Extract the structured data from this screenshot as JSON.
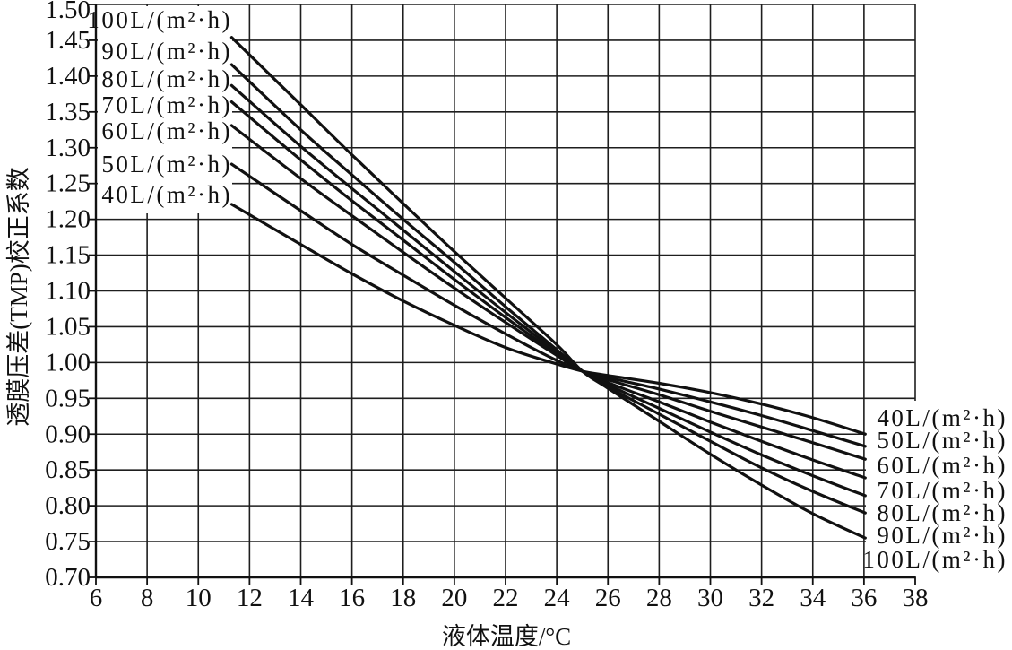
{
  "chart_data": {
    "type": "line",
    "xlabel": "液体温度/°C",
    "ylabel": "透膜压差(TMP)校正系数",
    "xlim": [
      6,
      38
    ],
    "ylim": [
      0.7,
      1.5
    ],
    "xticks": [
      "6",
      "8",
      "10",
      "12",
      "14",
      "16",
      "18",
      "20",
      "22",
      "24",
      "26",
      "28",
      "30",
      "32",
      "34",
      "36",
      "38"
    ],
    "yticks": [
      "0.70",
      "0.75",
      "0.80",
      "0.85",
      "0.90",
      "0.95",
      "1.00",
      "1.05",
      "1.10",
      "1.15",
      "1.20",
      "1.25",
      "1.30",
      "1.35",
      "1.40",
      "1.45",
      "1.50"
    ],
    "grid": true,
    "legend": "inline",
    "x": [
      11.3,
      14,
      16,
      18,
      20,
      22,
      24,
      25,
      26,
      28,
      30,
      32,
      34,
      36.05
    ],
    "series": [
      {
        "name": "40L/(m²·h)",
        "values": [
          1.221,
          1.165,
          1.124,
          1.086,
          1.052,
          1.021,
          0.998,
          0.988,
          0.982,
          0.971,
          0.958,
          0.942,
          0.923,
          0.9
        ]
      },
      {
        "name": "50L/(m²·h)",
        "values": [
          1.277,
          1.212,
          1.165,
          1.122,
          1.08,
          1.04,
          1.003,
          0.988,
          0.979,
          0.963,
          0.945,
          0.926,
          0.905,
          0.883
        ]
      },
      {
        "name": "60L/(m²·h)",
        "values": [
          1.331,
          1.257,
          1.205,
          1.154,
          1.104,
          1.056,
          1.01,
          0.988,
          0.976,
          0.955,
          0.932,
          0.91,
          0.888,
          0.865
        ]
      },
      {
        "name": "70L/(m²·h)",
        "values": [
          1.364,
          1.283,
          1.226,
          1.171,
          1.116,
          1.063,
          1.012,
          0.988,
          0.972,
          0.945,
          0.917,
          0.89,
          0.864,
          0.839
        ]
      },
      {
        "name": "80L/(m²·h)",
        "values": [
          1.387,
          1.302,
          1.243,
          1.185,
          1.127,
          1.07,
          1.015,
          0.988,
          0.969,
          0.936,
          0.903,
          0.871,
          0.842,
          0.814
        ]
      },
      {
        "name": "90L/(m²·h)",
        "values": [
          1.416,
          1.325,
          1.262,
          1.2,
          1.14,
          1.078,
          1.018,
          0.988,
          0.966,
          0.928,
          0.89,
          0.853,
          0.82,
          0.79
        ]
      },
      {
        "name": "100L/(m²·h)",
        "values": [
          1.454,
          1.36,
          1.29,
          1.222,
          1.155,
          1.09,
          1.025,
          0.988,
          0.964,
          0.918,
          0.872,
          0.829,
          0.789,
          0.755
        ]
      }
    ]
  },
  "colors": {
    "line": "#111111",
    "grid": "#1e1e1e",
    "background": "#ffffff"
  }
}
